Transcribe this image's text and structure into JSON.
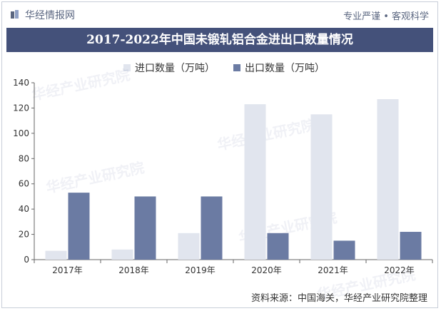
{
  "header": {
    "brand": "华经情报网",
    "tagline": "专业严谨 • 客观科学"
  },
  "chart_data": {
    "type": "bar",
    "title": "2017-2022年中国未锻轧铝合金进出口数量情况",
    "categories": [
      "2017年",
      "2018年",
      "2019年",
      "2020年",
      "2021年",
      "2022年"
    ],
    "series": [
      {
        "name": "进口数量（万吨）",
        "values": [
          7,
          8,
          21,
          123,
          115,
          127
        ],
        "color": "#e1e5ee"
      },
      {
        "name": "出口数量（万吨）",
        "values": [
          53,
          50,
          50,
          21,
          15,
          22
        ],
        "color": "#6b7ba3"
      }
    ],
    "yticks": [
      0,
      20,
      40,
      60,
      80,
      100,
      120,
      140
    ],
    "ylim": [
      0,
      140
    ],
    "legend_position": "top-left",
    "grid": false
  },
  "footer": {
    "source": "资料来源：中国海关，华经产业研究院整理"
  },
  "watermark": {
    "text": "华经产业研究院"
  }
}
